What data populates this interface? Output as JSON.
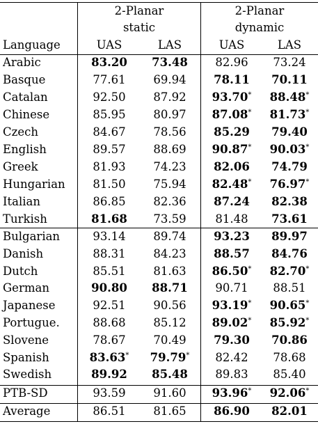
{
  "table": {
    "group_headers": {
      "static_line1": "2-Planar",
      "static_line2": "static",
      "dynamic_line1": "2-Planar",
      "dynamic_line2": "dynamic"
    },
    "columns": {
      "language": "Language",
      "static_uas": "UAS",
      "static_las": "LAS",
      "dynamic_uas": "UAS",
      "dynamic_las": "LAS"
    },
    "rows": [
      {
        "lang": "Arabic",
        "v": [
          "83.20",
          "73.48",
          "82.96",
          "73.24"
        ],
        "b": [
          true,
          true,
          false,
          false
        ],
        "s": [
          false,
          false,
          false,
          false
        ]
      },
      {
        "lang": "Basque",
        "v": [
          "77.61",
          "69.94",
          "78.11",
          "70.11"
        ],
        "b": [
          false,
          false,
          true,
          true
        ],
        "s": [
          false,
          false,
          false,
          false
        ]
      },
      {
        "lang": "Catalan",
        "v": [
          "92.50",
          "87.92",
          "93.70",
          "88.48"
        ],
        "b": [
          false,
          false,
          true,
          true
        ],
        "s": [
          false,
          false,
          true,
          true
        ]
      },
      {
        "lang": "Chinese",
        "v": [
          "85.95",
          "80.97",
          "87.08",
          "81.73"
        ],
        "b": [
          false,
          false,
          true,
          true
        ],
        "s": [
          false,
          false,
          true,
          true
        ]
      },
      {
        "lang": "Czech",
        "v": [
          "84.67",
          "78.56",
          "85.29",
          "79.40"
        ],
        "b": [
          false,
          false,
          true,
          true
        ],
        "s": [
          false,
          false,
          false,
          false
        ]
      },
      {
        "lang": "English",
        "v": [
          "89.57",
          "88.69",
          "90.87",
          "90.03"
        ],
        "b": [
          false,
          false,
          true,
          true
        ],
        "s": [
          false,
          false,
          true,
          true
        ]
      },
      {
        "lang": "Greek",
        "v": [
          "81.93",
          "74.23",
          "82.06",
          "74.79"
        ],
        "b": [
          false,
          false,
          true,
          true
        ],
        "s": [
          false,
          false,
          false,
          false
        ]
      },
      {
        "lang": "Hungarian",
        "v": [
          "81.50",
          "75.94",
          "82.48",
          "76.97"
        ],
        "b": [
          false,
          false,
          true,
          true
        ],
        "s": [
          false,
          false,
          true,
          true
        ]
      },
      {
        "lang": "Italian",
        "v": [
          "86.85",
          "82.36",
          "87.24",
          "82.38"
        ],
        "b": [
          false,
          false,
          true,
          true
        ],
        "s": [
          false,
          false,
          false,
          false
        ]
      },
      {
        "lang": "Turkish",
        "v": [
          "81.68",
          "73.59",
          "81.48",
          "73.61"
        ],
        "b": [
          true,
          false,
          false,
          true
        ],
        "s": [
          false,
          false,
          false,
          false
        ]
      },
      {
        "lang": "Bulgarian",
        "v": [
          "93.14",
          "89.74",
          "93.23",
          "89.97"
        ],
        "b": [
          false,
          false,
          true,
          true
        ],
        "s": [
          false,
          false,
          false,
          false
        ]
      },
      {
        "lang": "Danish",
        "v": [
          "88.31",
          "84.23",
          "88.57",
          "84.76"
        ],
        "b": [
          false,
          false,
          true,
          true
        ],
        "s": [
          false,
          false,
          false,
          false
        ]
      },
      {
        "lang": "Dutch",
        "v": [
          "85.51",
          "81.63",
          "86.50",
          "82.70"
        ],
        "b": [
          false,
          false,
          true,
          true
        ],
        "s": [
          false,
          false,
          true,
          true
        ]
      },
      {
        "lang": "German",
        "v": [
          "90.80",
          "88.71",
          "90.71",
          "88.51"
        ],
        "b": [
          true,
          true,
          false,
          false
        ],
        "s": [
          false,
          false,
          false,
          false
        ]
      },
      {
        "lang": "Japanese",
        "v": [
          "92.51",
          "90.56",
          "93.19",
          "90.65"
        ],
        "b": [
          false,
          false,
          true,
          true
        ],
        "s": [
          false,
          false,
          true,
          true
        ]
      },
      {
        "lang": "Portugue.",
        "v": [
          "88.68",
          "85.12",
          "89.02",
          "85.92"
        ],
        "b": [
          false,
          false,
          true,
          true
        ],
        "s": [
          false,
          false,
          true,
          true
        ]
      },
      {
        "lang": "Slovene",
        "v": [
          "78.67",
          "70.49",
          "79.30",
          "70.86"
        ],
        "b": [
          false,
          false,
          true,
          true
        ],
        "s": [
          false,
          false,
          false,
          false
        ]
      },
      {
        "lang": "Spanish",
        "v": [
          "83.63",
          "79.79",
          "82.42",
          "78.68"
        ],
        "b": [
          true,
          true,
          false,
          false
        ],
        "s": [
          true,
          true,
          false,
          false
        ]
      },
      {
        "lang": "Swedish",
        "v": [
          "89.92",
          "85.48",
          "89.83",
          "85.40"
        ],
        "b": [
          true,
          true,
          false,
          false
        ],
        "s": [
          false,
          false,
          false,
          false
        ]
      },
      {
        "lang": "PTB-SD",
        "v": [
          "93.59",
          "91.60",
          "93.96",
          "92.06"
        ],
        "b": [
          false,
          false,
          true,
          true
        ],
        "s": [
          false,
          false,
          true,
          true
        ]
      },
      {
        "lang": "Average",
        "v": [
          "86.51",
          "81.65",
          "86.90",
          "82.01"
        ],
        "b": [
          false,
          false,
          true,
          true
        ],
        "s": [
          false,
          false,
          false,
          false
        ]
      }
    ],
    "significance_marker": "*"
  }
}
